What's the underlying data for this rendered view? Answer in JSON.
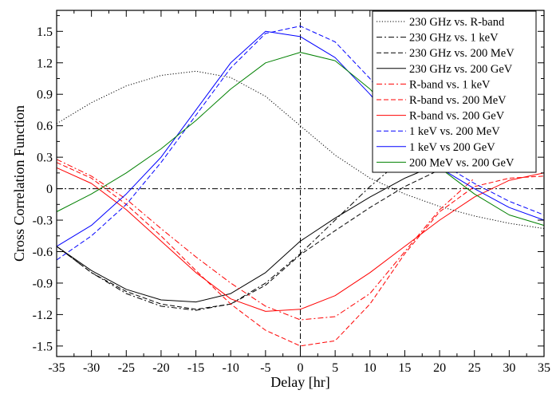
{
  "chart_data": {
    "type": "line",
    "title": "",
    "xlabel": "Delay [hr]",
    "ylabel": "Cross Correlation Function",
    "xlim": [
      -35,
      35
    ],
    "ylim": [
      -1.6,
      1.7
    ],
    "xticks": [
      -35,
      -30,
      -25,
      -20,
      -15,
      -10,
      -5,
      0,
      5,
      10,
      15,
      20,
      25,
      30,
      35
    ],
    "xtick_labels": [
      "-35",
      "-30",
      "-25",
      "-20",
      "-15",
      "-10",
      "-5",
      "0",
      "5",
      "10",
      "15",
      "20",
      "25",
      "30",
      "35"
    ],
    "yticks": [
      -1.5,
      -1.2,
      -0.9,
      -0.6,
      -0.3,
      0,
      0.3,
      0.6,
      0.9,
      1.2,
      1.5
    ],
    "ytick_labels": [
      "-1.5",
      "-1.2",
      "-0.9",
      "-0.6",
      "-0.3",
      "0",
      "0.3",
      "0.6",
      "0.9",
      "1.2",
      "1.5"
    ],
    "reference_lines": {
      "x": 0,
      "y": 0,
      "style": "dashdot"
    },
    "legend_position": "top-right",
    "series": [
      {
        "name": "230 GHz vs. R-band",
        "color": "#000000",
        "dash": "dotted",
        "x": [
          -35,
          -30,
          -25,
          -20,
          -15,
          -10,
          -5,
          0,
          5,
          10,
          15,
          20,
          25,
          30,
          35
        ],
        "y": [
          0.62,
          0.82,
          0.98,
          1.08,
          1.12,
          1.06,
          0.88,
          0.6,
          0.32,
          0.1,
          -0.05,
          -0.17,
          -0.26,
          -0.33,
          -0.38
        ]
      },
      {
        "name": "230 GHz vs. 1 keV",
        "color": "#000000",
        "dash": "dashdot",
        "x": [
          -35,
          -30,
          -25,
          -20,
          -15,
          -10,
          -5,
          0,
          5,
          10,
          15
        ],
        "y": [
          -0.55,
          -0.8,
          -1.0,
          -1.12,
          -1.16,
          -1.1,
          -0.9,
          -0.62,
          -0.3,
          0.02,
          0.3
        ]
      },
      {
        "name": "230 GHz vs. 200 MeV",
        "color": "#000000",
        "dash": "dashed",
        "x": [
          -35,
          -30,
          -25,
          -20,
          -15,
          -10,
          -5,
          0,
          5,
          10,
          15,
          20
        ],
        "y": [
          -0.55,
          -0.8,
          -0.98,
          -1.1,
          -1.15,
          -1.1,
          -0.92,
          -0.63,
          -0.4,
          -0.18,
          0.02,
          0.18
        ]
      },
      {
        "name": "230 GHz vs. 200 GeV",
        "color": "#000000",
        "dash": "solid",
        "x": [
          -35,
          -30,
          -25,
          -20,
          -15,
          -10,
          -5,
          0,
          5,
          10,
          15,
          20
        ],
        "y": [
          -0.55,
          -0.78,
          -0.96,
          -1.06,
          -1.08,
          -1.0,
          -0.8,
          -0.5,
          -0.28,
          -0.08,
          0.1,
          0.24
        ]
      },
      {
        "name": "R-band vs. 1 keV",
        "color": "#ff0000",
        "dash": "dashdot",
        "x": [
          -35,
          -30,
          -25,
          -20,
          -15,
          -10,
          -5,
          0,
          5,
          10,
          15,
          20,
          25
        ],
        "y": [
          0.28,
          0.12,
          -0.1,
          -0.38,
          -0.65,
          -0.9,
          -1.12,
          -1.25,
          -1.22,
          -1.0,
          -0.6,
          -0.2,
          0.1
        ]
      },
      {
        "name": "R-band vs. 200 MeV",
        "color": "#ff0000",
        "dash": "dashed",
        "x": [
          -35,
          -30,
          -25,
          -20,
          -15,
          -10,
          -5,
          0,
          5,
          10,
          15,
          20,
          25,
          30,
          35
        ],
        "y": [
          0.25,
          0.1,
          -0.15,
          -0.45,
          -0.78,
          -1.1,
          -1.35,
          -1.5,
          -1.45,
          -1.1,
          -0.62,
          -0.22,
          0.02,
          0.1,
          0.12
        ]
      },
      {
        "name": "R-band vs. 200 GeV",
        "color": "#ff0000",
        "dash": "solid",
        "x": [
          -35,
          -30,
          -25,
          -20,
          -15,
          -10,
          -5,
          0,
          5,
          10,
          15,
          20,
          25,
          30,
          35
        ],
        "y": [
          0.2,
          0.05,
          -0.2,
          -0.5,
          -0.8,
          -1.05,
          -1.17,
          -1.15,
          -1.02,
          -0.8,
          -0.55,
          -0.3,
          -0.08,
          0.08,
          0.15
        ]
      },
      {
        "name": "1 keV vs. 200 MeV",
        "color": "#0000ff",
        "dash": "dashed",
        "x": [
          -35,
          -30,
          -25,
          -20,
          -15,
          -10,
          -5,
          0,
          5,
          10,
          15,
          20,
          25,
          30,
          35
        ],
        "y": [
          -0.68,
          -0.45,
          -0.15,
          0.25,
          0.7,
          1.15,
          1.48,
          1.55,
          1.4,
          1.05,
          0.6,
          0.25,
          0.05,
          -0.12,
          -0.25
        ]
      },
      {
        "name": "1 keV vs 200 GeV",
        "color": "#0000ff",
        "dash": "solid",
        "x": [
          -35,
          -30,
          -25,
          -20,
          -15,
          -10,
          -5,
          0,
          5,
          10,
          15,
          20,
          25,
          30,
          35
        ],
        "y": [
          -0.55,
          -0.35,
          -0.05,
          0.3,
          0.75,
          1.2,
          1.5,
          1.45,
          1.25,
          0.9,
          0.5,
          0.2,
          0.0,
          -0.18,
          -0.3
        ]
      },
      {
        "name": "200 MeV vs. 200 GeV",
        "color": "#008000",
        "dash": "solid",
        "x": [
          -35,
          -30,
          -25,
          -20,
          -15,
          -10,
          -5,
          0,
          5,
          10,
          15,
          20,
          25,
          30,
          35
        ],
        "y": [
          -0.22,
          -0.05,
          0.15,
          0.38,
          0.65,
          0.95,
          1.2,
          1.3,
          1.22,
          0.95,
          0.58,
          0.2,
          -0.05,
          -0.25,
          -0.35
        ]
      }
    ]
  }
}
